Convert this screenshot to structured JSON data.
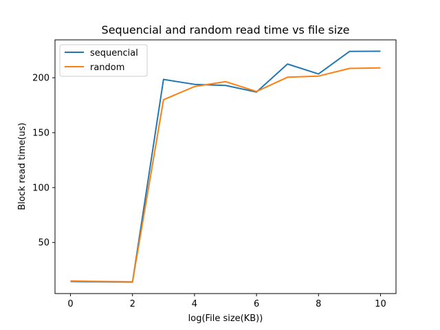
{
  "chart_data": {
    "type": "line",
    "title": "Sequencial and random read time vs file size",
    "xlabel": "log(File size(KB))",
    "ylabel": "Block read time(us)",
    "x": [
      0,
      1,
      2,
      3,
      4,
      5,
      6,
      7,
      8,
      9,
      10
    ],
    "series": [
      {
        "name": "sequencial",
        "color": "#1f77b4",
        "values": [
          14.5,
          14.2,
          14.0,
          198.5,
          194.0,
          193.0,
          187.0,
          212.5,
          203.5,
          224.0,
          224.2
        ]
      },
      {
        "name": "random",
        "color": "#ff7f0e",
        "values": [
          15.0,
          14.5,
          14.2,
          180.0,
          192.0,
          196.5,
          187.5,
          200.5,
          201.5,
          208.5,
          209.0
        ]
      }
    ],
    "xlim": [
      -0.5,
      10.5
    ],
    "ylim": [
      3.5,
      234.5
    ],
    "xticks": [
      0,
      2,
      4,
      6,
      8,
      10
    ],
    "yticks": [
      50,
      100,
      150,
      200
    ],
    "grid": false,
    "legend_position": "top-left"
  }
}
